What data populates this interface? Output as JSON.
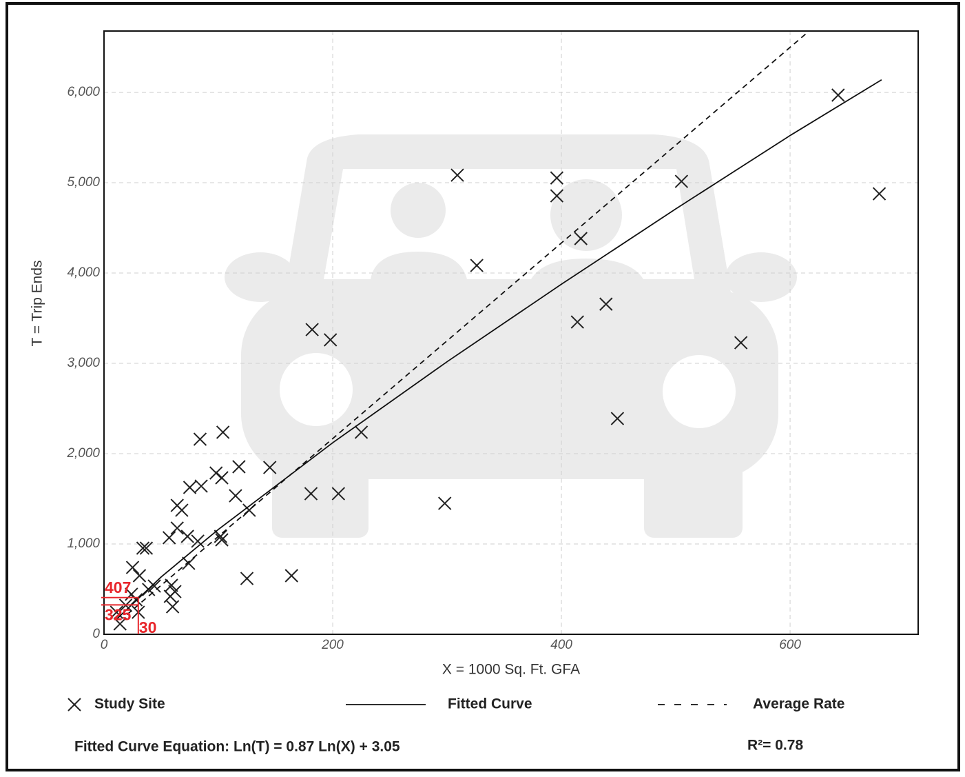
{
  "chart_data": {
    "type": "scatter",
    "x_label": "X = 1000 Sq. Ft. GFA",
    "y_label": "T = Trip Ends",
    "xlim": [
      0,
      712
    ],
    "ylim": [
      0,
      6680
    ],
    "xticks": [
      0,
      200,
      400,
      600
    ],
    "yticks": [
      0,
      {
        "value": 1000,
        "label": "1,000"
      },
      {
        "value": 2000,
        "label": "2,000"
      },
      {
        "value": 3000,
        "label": "3,000"
      },
      {
        "value": 4000,
        "label": "4,000"
      },
      {
        "value": 5000,
        "label": "5,000"
      },
      {
        "value": 6000,
        "label": "6,000"
      }
    ],
    "grid": true,
    "series": [
      {
        "name": "Study Site",
        "type": "scatter",
        "color": "#222222",
        "x": [
          642,
          678,
          309,
          396,
          396,
          505,
          417,
          326,
          439,
          414,
          557,
          449,
          182,
          198,
          225,
          181,
          205,
          298,
          104,
          84,
          145,
          118,
          98,
          103,
          115,
          127,
          75,
          85,
          64,
          68,
          64,
          57,
          73,
          82,
          102,
          103,
          74,
          34,
          37,
          125,
          164,
          25,
          31,
          44,
          39,
          59,
          62,
          58,
          60,
          24,
          28,
          30,
          14,
          11,
          19
        ],
        "values": [
          5970,
          4878,
          5084,
          5053,
          4855,
          5015,
          4382,
          4084,
          3656,
          3458,
          3229,
          2389,
          3374,
          3260,
          2237,
          1557,
          1557,
          1450,
          2237,
          2160,
          1847,
          1855,
          1786,
          1733,
          1534,
          1374,
          1626,
          1641,
          1427,
          1374,
          1176,
          1069,
          1084,
          1031,
          1084,
          1046,
          786,
          954,
          954,
          618,
          649,
          740,
          649,
          534,
          496,
          542,
          473,
          420,
          305,
          443,
          382,
          244,
          115,
          244,
          321
        ]
      },
      {
        "name": "Fitted Curve",
        "type": "line",
        "color": "#111111",
        "dashed": false,
        "x": [
          10,
          50,
          100,
          200,
          300,
          400,
          500,
          600,
          680
        ],
        "values": [
          156,
          635,
          1161,
          2121,
          3018,
          3876,
          4710,
          5523,
          6140
        ]
      },
      {
        "name": "Average Rate",
        "type": "line",
        "color": "#111111",
        "dashed": true,
        "x": [
          20,
          615
        ],
        "values": [
          217,
          6662
        ]
      }
    ],
    "equation": "Fitted Curve Equation: Ln(T) = 0.87 Ln(X) + 3.05",
    "r_squared": "R²= 0.78",
    "annotation": {
      "x": 30,
      "fitted": 407,
      "average": 325,
      "color": "#e8262b"
    }
  }
}
